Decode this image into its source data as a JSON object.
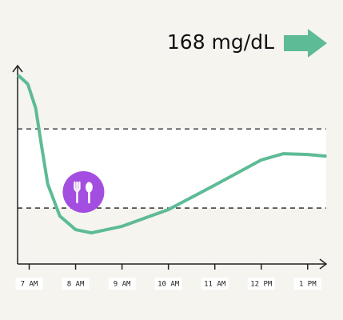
{
  "chart_data": {
    "type": "line",
    "headline": "168 mg/dL",
    "x": [
      6.78,
      6.97,
      7.14,
      7.26,
      7.4,
      7.66,
      8.0,
      8.34,
      9.0,
      10.0,
      10.98,
      12.0,
      12.48,
      13.0,
      13.38
    ],
    "series": [
      {
        "color": "#5dbb95",
        "values": [
          94.8,
          90.7,
          78.6,
          60.5,
          40.3,
          24.2,
          17.3,
          15.7,
          19,
          27.4,
          39.5,
          52.4,
          55.6,
          55.2,
          54.4
        ]
      }
    ],
    "xlim": [
      6.75,
      13.4
    ],
    "ylim": [
      0,
      100
    ],
    "xticks": [
      {
        "value": 7,
        "label": "7 AM"
      },
      {
        "value": 8,
        "label": "8 AM"
      },
      {
        "value": 9,
        "label": "9 AM"
      },
      {
        "value": 10,
        "label": "10 AM"
      },
      {
        "value": 11,
        "label": "11 AM"
      },
      {
        "value": 12,
        "label": "12 PM"
      },
      {
        "value": 13,
        "label": "1 PM"
      }
    ],
    "target_range": [
      28.2,
      68.1
    ],
    "meal_marker": {
      "x": 8.17,
      "y": 36.3
    }
  }
}
